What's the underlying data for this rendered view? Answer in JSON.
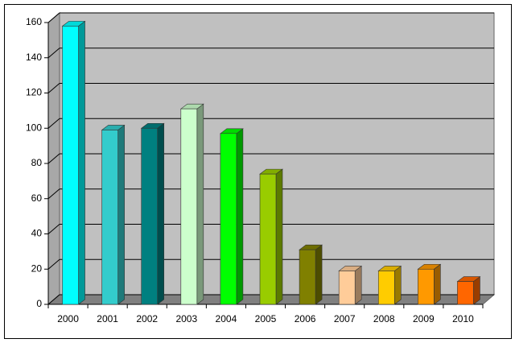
{
  "chart_data": {
    "type": "bar3d",
    "categories": [
      "2000",
      "2001",
      "2002",
      "2003",
      "2004",
      "2005",
      "2006",
      "2007",
      "2008",
      "2009",
      "2010"
    ],
    "values": [
      158,
      99,
      100,
      111,
      97,
      74,
      31,
      19,
      19,
      20,
      13
    ],
    "colors": [
      "#00ffff",
      "#33cccc",
      "#008080",
      "#ccffcc",
      "#00ff00",
      "#99cc00",
      "#808000",
      "#ffcc99",
      "#ffcc00",
      "#ff9900",
      "#ff6600"
    ],
    "ylim": [
      0,
      160
    ],
    "yticks": [
      0,
      20,
      40,
      60,
      80,
      100,
      120,
      140,
      160
    ],
    "grid": true
  }
}
